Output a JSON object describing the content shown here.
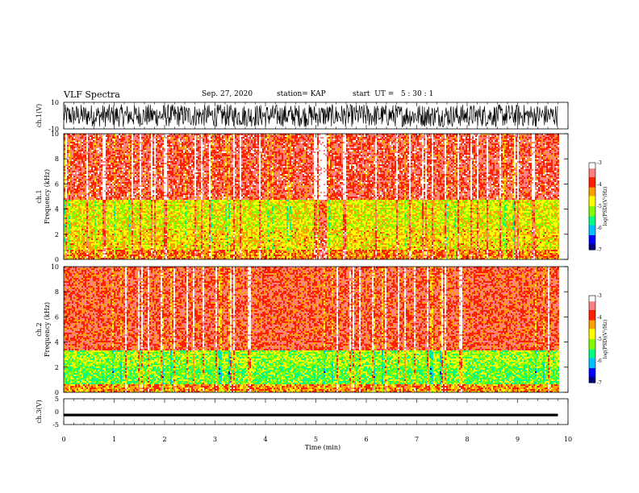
{
  "header": {
    "title": "VLF Spectra",
    "date": "Sep. 27, 2020",
    "station": "station= KAP",
    "start": "start  UT =   5 : 30 : 1"
  },
  "colors": {
    "colormap": [
      "#000080",
      "#0000ff",
      "#00bfff",
      "#00ff80",
      "#80ff00",
      "#ffff00",
      "#ffa000",
      "#ff2000",
      "#ff8080",
      "#ffffff"
    ]
  },
  "chart_data": [
    {
      "type": "line",
      "name": "ch1-waveform",
      "ylabel": "ch.1(V)",
      "ylim": [
        -10,
        10
      ],
      "yticks": [
        "10",
        "-10"
      ],
      "x": [
        0,
        10
      ],
      "xunit": "min",
      "note_range_v": [
        -9,
        9
      ]
    },
    {
      "type": "heatmap",
      "name": "ch1-spectrogram",
      "ylabel": "ch.1\nFrequency (kHz)",
      "ylim": [
        0,
        10
      ],
      "yticks": [
        "0",
        "2",
        "4",
        "6",
        "8",
        "10"
      ],
      "x_range_min": [
        0,
        9.8
      ],
      "color_scale": {
        "label": "log(PSD)(V²/Hz)",
        "range": [
          -7,
          -3
        ],
        "ticks": [
          "-3",
          "-4",
          "-5",
          "-6",
          "-7"
        ]
      },
      "bands_khz": [
        {
          "range": [
            0,
            0.8
          ],
          "level": -4.2
        },
        {
          "range": [
            0.8,
            2.5
          ],
          "level": -4.6
        },
        {
          "range": [
            2.5,
            4.8
          ],
          "level": -4.8
        },
        {
          "range": [
            4.8,
            10
          ],
          "level": -3.7
        }
      ]
    },
    {
      "type": "heatmap",
      "name": "ch2-spectrogram",
      "ylabel": "ch.2\nFrequency (kHz)",
      "ylim": [
        0,
        10
      ],
      "yticks": [
        "0",
        "2",
        "4",
        "6",
        "8",
        "10"
      ],
      "x_range_min": [
        0,
        9.8
      ],
      "color_scale": {
        "label": "log(PSD)(V²/Hz)",
        "range": [
          -7,
          -3
        ],
        "ticks": [
          "-3",
          "-4",
          "-5",
          "-6",
          "-7"
        ]
      },
      "bands_khz": [
        {
          "range": [
            0,
            0.6
          ],
          "level": -4.3
        },
        {
          "range": [
            0.6,
            2.0
          ],
          "level": -5.3
        },
        {
          "range": [
            2.0,
            3.3
          ],
          "level": -5.1
        },
        {
          "range": [
            3.3,
            10
          ],
          "level": -3.8
        }
      ]
    },
    {
      "type": "line",
      "name": "ch3-waveform",
      "ylabel": "ch.3(V)",
      "ylim": [
        -5,
        5
      ],
      "yticks": [
        "5",
        "0",
        "-5"
      ],
      "approx_level_v": [
        -1.8,
        -0.8
      ]
    }
  ],
  "xaxis": {
    "label": "Time (min)",
    "ticks": [
      "0",
      "1",
      "2",
      "3",
      "4",
      "5",
      "6",
      "7",
      "8",
      "9",
      "10"
    ],
    "range": [
      0,
      10
    ]
  }
}
